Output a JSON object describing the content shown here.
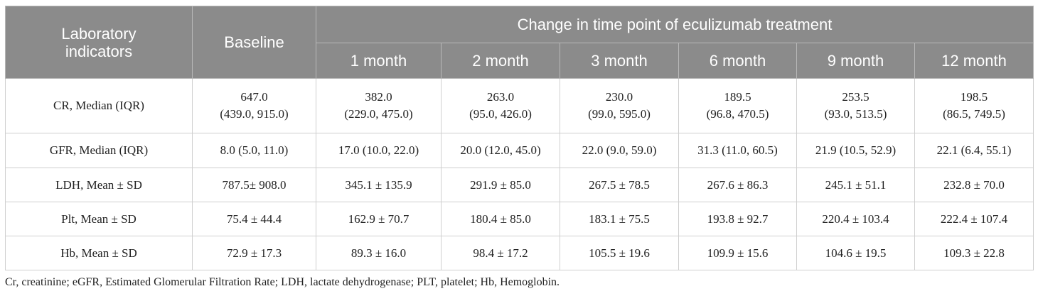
{
  "table": {
    "header": {
      "indicator": "Laboratory indicators",
      "baseline": "Baseline",
      "group": "Change in time point of eculizumab treatment",
      "subcols": [
        "1 month",
        "2 month",
        "3 month",
        "6 month",
        "9 month",
        "12 month"
      ]
    },
    "rows": [
      {
        "label": "CR, Median (IQR)",
        "cells": [
          [
            "647.0",
            "(439.0, 915.0)"
          ],
          [
            "382.0",
            "(229.0, 475.0)"
          ],
          [
            "263.0",
            "(95.0, 426.0)"
          ],
          [
            "230.0",
            "(99.0, 595.0)"
          ],
          [
            "189.5",
            "(96.8, 470.5)"
          ],
          [
            "253.5",
            "(93.0, 513.5)"
          ],
          [
            "198.5",
            "(86.5, 749.5)"
          ]
        ]
      },
      {
        "label": "GFR, Median (IQR)",
        "cells": [
          "8.0 (5.0, 11.0)",
          "17.0 (10.0, 22.0)",
          "20.0 (12.0, 45.0)",
          "22.0 (9.0, 59.0)",
          "31.3 (11.0, 60.5)",
          "21.9 (10.5, 52.9)",
          "22.1 (6.4, 55.1)"
        ]
      },
      {
        "label": "LDH, Mean ± SD",
        "cells": [
          "787.5± 908.0",
          "345.1 ± 135.9",
          "291.9 ± 85.0",
          "267.5 ± 78.5",
          "267.6 ± 86.3",
          "245.1 ± 51.1",
          "232.8 ± 70.0"
        ]
      },
      {
        "label": "Plt, Mean ± SD",
        "cells": [
          "75.4 ± 44.4",
          "162.9 ± 70.7",
          "180.4 ± 85.0",
          "183.1 ± 75.5",
          "193.8 ± 92.7",
          "220.4 ± 103.4",
          "222.4 ± 107.4"
        ]
      },
      {
        "label": "Hb, Mean ± SD",
        "cells": [
          "72.9 ± 17.3",
          "89.3 ± 16.0",
          "98.4 ± 17.2",
          "105.5 ± 19.6",
          "109.9 ± 15.6",
          "104.6 ± 19.5",
          "109.3 ± 22.8"
        ]
      }
    ]
  },
  "footnote": "Cr, creatinine; eGFR, Estimated Glomerular Filtration Rate; LDH, lactate dehydrogenase; PLT, platelet; Hb, Hemoglobin."
}
